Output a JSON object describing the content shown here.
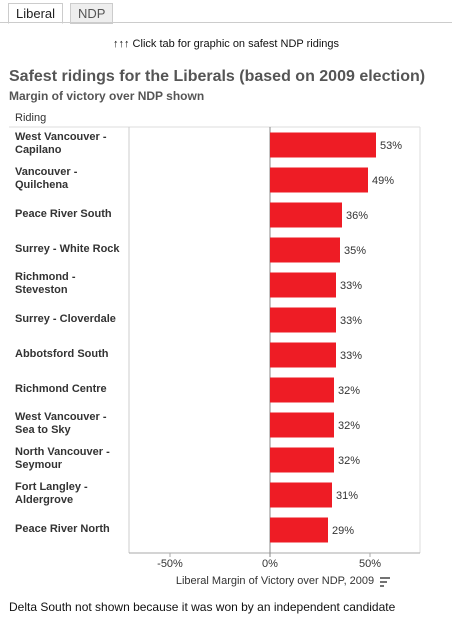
{
  "tabs": [
    "Liberal",
    "NDP"
  ],
  "instruction": "↑↑↑  Click tab for graphic on safest NDP ridings",
  "chart_data": {
    "type": "bar",
    "orientation": "horizontal",
    "title": "Safest ridings for the Liberals (based on 2009 election)",
    "subtitle": "Margin of victory over NDP shown",
    "column_header": "Riding",
    "x_label": "Liberal Margin of Victory over NDP, 2009",
    "categories": [
      "West Vancouver - Capilano",
      "Vancouver - Quilchena",
      "Peace River South",
      "Surrey - White Rock",
      "Richmond - Steveston",
      "Surrey - Cloverdale",
      "Abbotsford South",
      "Richmond Centre",
      "West Vancouver - Sea to Sky",
      "North Vancouver - Seymour",
      "Fort Langley - Aldergrove",
      "Peace River North"
    ],
    "values": [
      53,
      49,
      36,
      35,
      33,
      33,
      33,
      32,
      32,
      32,
      31,
      29
    ],
    "value_labels": [
      "53%",
      "49%",
      "36%",
      "35%",
      "33%",
      "33%",
      "33%",
      "32%",
      "32%",
      "32%",
      "31%",
      "29%"
    ],
    "color": "#ee1c25",
    "xlim": [
      -70.5,
      75
    ],
    "xticks": [
      {
        "value": -50,
        "label": "-50%"
      },
      {
        "value": 0,
        "label": "0%"
      },
      {
        "value": 50,
        "label": "50%"
      }
    ]
  },
  "footnote": "Delta South not shown because it was won by an independent candidate"
}
